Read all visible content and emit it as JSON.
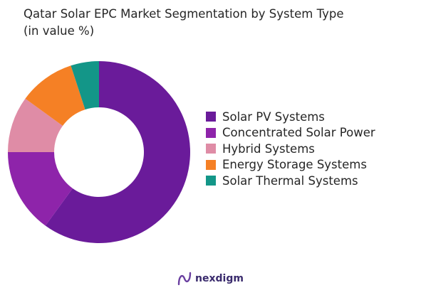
{
  "title": {
    "line1": "Qatar Solar EPC Market Segmentation by System Type",
    "line2": "(in value %)"
  },
  "brand": {
    "name": "nexdigm"
  },
  "chart_data": {
    "type": "pie",
    "variant": "donut",
    "title": "Qatar Solar EPC Market Segmentation by System Type (in value %)",
    "legend_position": "right",
    "categories": [
      "Solar PV Systems",
      "Concentrated Solar Power",
      "Hybrid Systems",
      "Energy Storage Systems",
      "Solar Thermal Systems"
    ],
    "values": [
      60,
      15,
      10,
      10,
      5
    ],
    "colors": [
      "#6a1b9a",
      "#8e24aa",
      "#df8ca6",
      "#f58025",
      "#139688"
    ]
  }
}
